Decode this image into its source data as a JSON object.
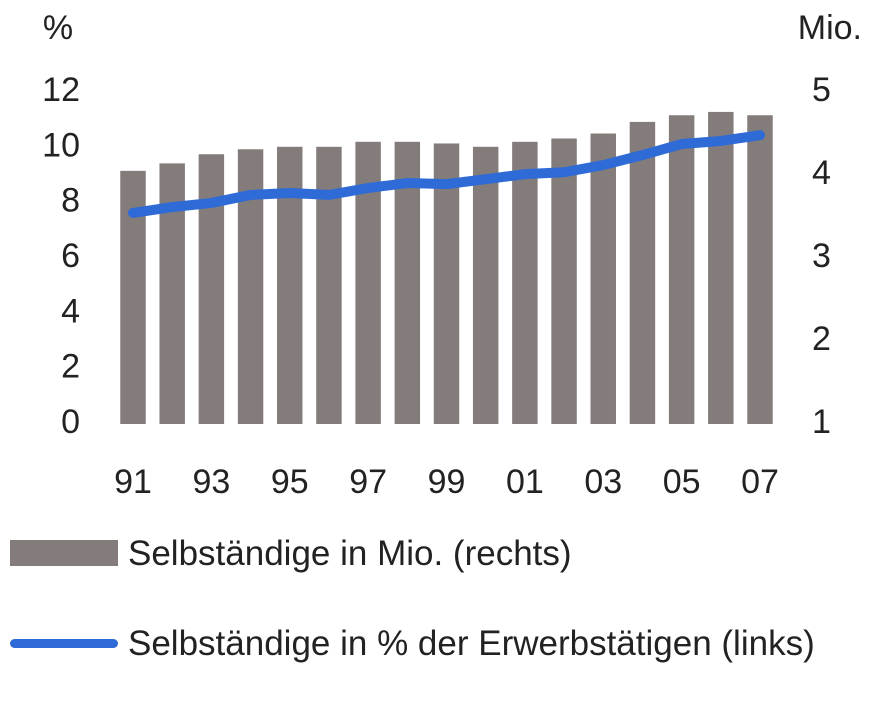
{
  "chart_data": {
    "type": "bar-line",
    "ylabel": "%",
    "y2label": "Mio.",
    "categories": [
      "91",
      null,
      "93",
      null,
      "95",
      null,
      "97",
      null,
      "99",
      null,
      "01",
      null,
      "03",
      null,
      "05",
      null,
      "07"
    ],
    "series": [
      {
        "name": "Selbständige in Mio. (rechts)",
        "type": "bar",
        "axis": "y2",
        "color": "#847c7a",
        "values": [
          4.05,
          4.14,
          4.25,
          4.31,
          4.34,
          4.34,
          4.4,
          4.4,
          4.38,
          4.34,
          4.4,
          4.44,
          4.5,
          4.64,
          4.72,
          4.76,
          4.72
        ]
      },
      {
        "name": "Selbständige in % der Erwerbstätigen (links)",
        "type": "line",
        "axis": "y",
        "color": "#2f6bd6",
        "values": [
          7.63,
          7.84,
          7.99,
          8.28,
          8.35,
          8.28,
          8.53,
          8.71,
          8.67,
          8.85,
          9.03,
          9.1,
          9.36,
          9.72,
          10.12,
          10.23,
          10.44
        ]
      }
    ],
    "ylim": [
      0,
      12
    ],
    "yticks": [
      0,
      2,
      4,
      6,
      8,
      10,
      12
    ],
    "y2lim": [
      1,
      5
    ],
    "y2ticks": [
      1,
      2,
      3,
      4,
      5
    ],
    "grid": false
  }
}
